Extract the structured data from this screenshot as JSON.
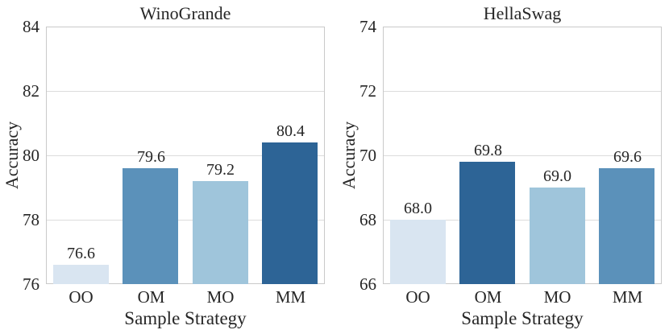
{
  "figure": {
    "background": "#ffffff",
    "text_color": "#262626",
    "spine_color": "#c9c9c9",
    "grid_color": "#dcdcdc"
  },
  "chart_data": [
    {
      "type": "bar",
      "title": "WinoGrande",
      "xlabel": "Sample Strategy",
      "ylabel": "Accuracy",
      "categories": [
        "OO",
        "OM",
        "MO",
        "MM"
      ],
      "values": [
        76.6,
        79.6,
        79.2,
        80.4
      ],
      "value_labels": [
        "76.6",
        "79.6",
        "79.2",
        "80.4"
      ],
      "bar_colors": [
        "#d9e5f1",
        "#5b91ba",
        "#9fc5db",
        "#2d6496"
      ],
      "ylim": [
        76,
        84
      ],
      "yticks": [
        76,
        78,
        80,
        82,
        84
      ],
      "grid": true,
      "legend": "none"
    },
    {
      "type": "bar",
      "title": "HellaSwag",
      "xlabel": "Sample Strategy",
      "ylabel": "Accuracy",
      "categories": [
        "OO",
        "OM",
        "MO",
        "MM"
      ],
      "values": [
        68.0,
        69.8,
        69.0,
        69.6
      ],
      "value_labels": [
        "68.0",
        "69.8",
        "69.0",
        "69.6"
      ],
      "bar_colors": [
        "#d9e5f1",
        "#2d6496",
        "#9fc5db",
        "#5b91ba"
      ],
      "ylim": [
        66,
        74
      ],
      "yticks": [
        66,
        68,
        70,
        72,
        74
      ],
      "grid": true,
      "legend": "none"
    }
  ]
}
